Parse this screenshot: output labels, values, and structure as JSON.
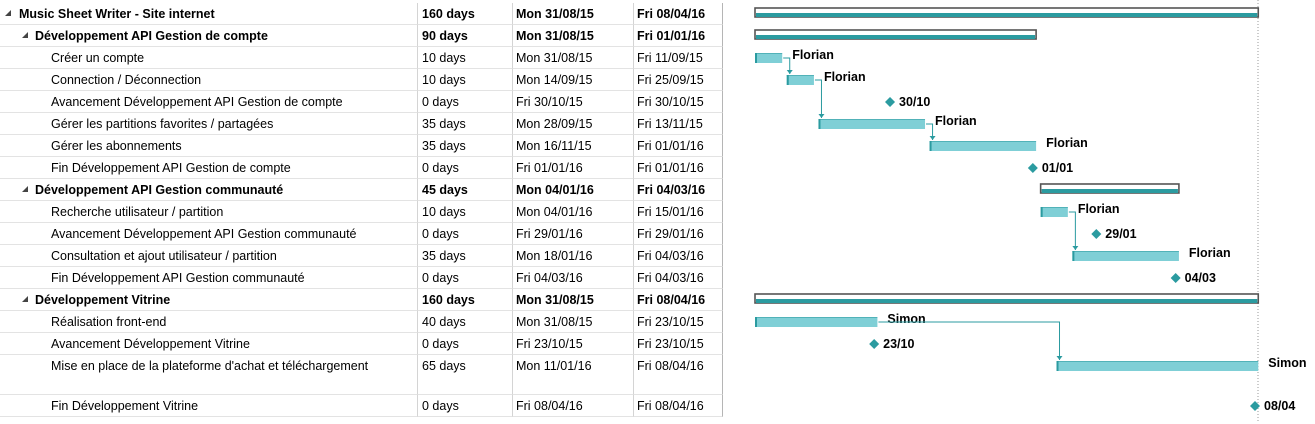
{
  "colors": {
    "summary_fill": "#2b9ba0",
    "summary_border": "#555555",
    "task_fill": "#7fcfd6",
    "task_edge": "#2b9ba0",
    "milestone": "#2b9ba0",
    "link": "#2b9ba0",
    "collapse_icon": "#444444",
    "today_line": "#9a9a9a"
  },
  "tasks": [
    {
      "name": "Music Sheet Writer - Site internet",
      "duration": "160 days",
      "start": "Mon 31/08/15",
      "finish": "Fri 08/04/16",
      "level": 0,
      "summary": true,
      "bar_start": "2015-08-31",
      "bar_end": "2016-04-08"
    },
    {
      "name": "Développement API Gestion de compte",
      "duration": "90 days",
      "start": "Mon 31/08/15",
      "finish": "Fri 01/01/16",
      "level": 1,
      "summary": true,
      "bar_start": "2015-08-31",
      "bar_end": "2016-01-01"
    },
    {
      "name": "Créer un compte",
      "duration": "10 days",
      "start": "Mon 31/08/15",
      "finish": "Fri 11/09/15",
      "level": 2,
      "bar_start": "2015-08-31",
      "bar_end": "2015-09-11",
      "label": "Florian"
    },
    {
      "name": "Connection / Déconnection",
      "duration": "10 days",
      "start": "Mon 14/09/15",
      "finish": "Fri 25/09/15",
      "level": 2,
      "bar_start": "2015-09-14",
      "bar_end": "2015-09-25",
      "label": "Florian"
    },
    {
      "name": "Avancement Développement API Gestion de compte",
      "duration": "0 days",
      "start": "Fri 30/10/15",
      "finish": "Fri 30/10/15",
      "level": 2,
      "milestone": true,
      "bar_start": "2015-10-30",
      "label": "30/10"
    },
    {
      "name": "Gérer les partitions favorites / partagées",
      "duration": "35 days",
      "start": "Mon 28/09/15",
      "finish": "Fri 13/11/15",
      "level": 2,
      "bar_start": "2015-09-28",
      "bar_end": "2015-11-13",
      "label": "Florian"
    },
    {
      "name": "Gérer les abonnements",
      "duration": "35 days",
      "start": "Mon 16/11/15",
      "finish": "Fri 01/01/16",
      "level": 2,
      "bar_start": "2015-11-16",
      "bar_end": "2016-01-01",
      "label": "Florian"
    },
    {
      "name": "Fin Développement API Gestion de compte",
      "duration": "0 days",
      "start": "Fri 01/01/16",
      "finish": "Fri 01/01/16",
      "level": 2,
      "milestone": true,
      "bar_start": "2016-01-01",
      "label": "01/01"
    },
    {
      "name": "Développement API Gestion communauté",
      "duration": "45 days",
      "start": "Mon 04/01/16",
      "finish": "Fri 04/03/16",
      "level": 1,
      "summary": true,
      "bar_start": "2016-01-04",
      "bar_end": "2016-03-04"
    },
    {
      "name": "Recherche utilisateur / partition",
      "duration": "10 days",
      "start": "Mon 04/01/16",
      "finish": "Fri 15/01/16",
      "level": 2,
      "bar_start": "2016-01-04",
      "bar_end": "2016-01-15",
      "label": "Florian"
    },
    {
      "name": "Avancement Développement API Gestion communauté",
      "duration": "0 days",
      "start": "Fri 29/01/16",
      "finish": "Fri 29/01/16",
      "level": 2,
      "milestone": true,
      "bar_start": "2016-01-29",
      "label": "29/01"
    },
    {
      "name": "Consultation et ajout utilisateur / partition",
      "duration": "35 days",
      "start": "Mon 18/01/16",
      "finish": "Fri 04/03/16",
      "level": 2,
      "bar_start": "2016-01-18",
      "bar_end": "2016-03-04",
      "label": "Florian"
    },
    {
      "name": "Fin Développement API Gestion communauté",
      "duration": "0 days",
      "start": "Fri 04/03/16",
      "finish": "Fri 04/03/16",
      "level": 2,
      "milestone": true,
      "bar_start": "2016-03-04",
      "label": "04/03"
    },
    {
      "name": "Développement Vitrine",
      "duration": "160 days",
      "start": "Mon 31/08/15",
      "finish": "Fri 08/04/16",
      "level": 1,
      "summary": true,
      "bar_start": "2015-08-31",
      "bar_end": "2016-04-08"
    },
    {
      "name": "Réalisation front-end",
      "duration": "40 days",
      "start": "Mon 31/08/15",
      "finish": "Fri 23/10/15",
      "level": 2,
      "bar_start": "2015-08-31",
      "bar_end": "2015-10-23",
      "label": "Simon"
    },
    {
      "name": "Avancement Développement Vitrine",
      "duration": "0 days",
      "start": "Fri 23/10/15",
      "finish": "Fri 23/10/15",
      "level": 2,
      "milestone": true,
      "bar_start": "2015-10-23",
      "label": "23/10"
    },
    {
      "name": "Mise en place de la plateforme d'achat et téléchargement",
      "duration": "65 days",
      "start": "Mon 11/01/16",
      "finish": "Fri 08/04/16",
      "level": 2,
      "tall": true,
      "bar_start": "2016-01-11",
      "bar_end": "2016-04-08",
      "label": "Simon"
    },
    {
      "name": "Fin Développement Vitrine",
      "duration": "0 days",
      "start": "Fri 08/04/16",
      "finish": "Fri 08/04/16",
      "level": 2,
      "milestone": true,
      "bar_start": "2016-04-08",
      "label": "08/04"
    }
  ],
  "links": [
    [
      2,
      3
    ],
    [
      3,
      5
    ],
    [
      5,
      6
    ],
    [
      9,
      11
    ],
    [
      14,
      16
    ]
  ]
}
